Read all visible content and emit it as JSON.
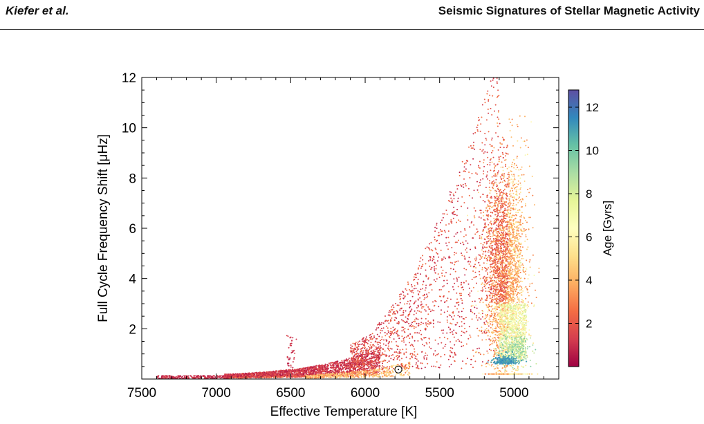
{
  "header": {
    "authors": "Kiefer et al.",
    "title": "Seismic Signatures of Stellar Magnetic Activity"
  },
  "chart_data": {
    "type": "scatter",
    "xlabel": "Effective Temperature [K]",
    "ylabel": "Full Cycle Frequency Shift [μHz]",
    "xlim": [
      7500,
      4700
    ],
    "x_reversed": true,
    "ylim": [
      0,
      12
    ],
    "xticks": [
      "7500",
      "7000",
      "6500",
      "6000",
      "5500",
      "5000"
    ],
    "xtick_values": [
      7500,
      7000,
      6500,
      6000,
      5500,
      5000
    ],
    "yticks": [
      "2",
      "4",
      "6",
      "8",
      "10",
      "12"
    ],
    "ytick_values": [
      2,
      4,
      6,
      8,
      10,
      12
    ],
    "colorbar": {
      "label": "Age [Gyrs]",
      "range": [
        0,
        12.8
      ],
      "ticks": [
        "2",
        "4",
        "6",
        "8",
        "10",
        "12"
      ],
      "tick_values": [
        2,
        4,
        6,
        8,
        10,
        12
      ],
      "colormap": [
        "#9e0142",
        "#d53e4f",
        "#f46d43",
        "#fdae61",
        "#fee08b",
        "#ffffbf",
        "#e6f598",
        "#abdda4",
        "#66c2a5",
        "#3288bd",
        "#5e4fa2"
      ]
    },
    "sun_marker": {
      "x": 5777,
      "y": 0.38
    },
    "grid": false,
    "legend": "none"
  }
}
